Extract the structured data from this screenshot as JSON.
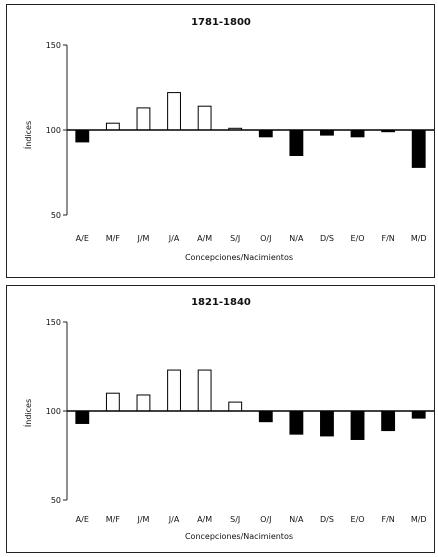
{
  "chart_data": [
    {
      "type": "bar",
      "title": "1781-1800",
      "xlabel": "Concepciones/Nacimientos",
      "ylabel": "Índices",
      "categories": [
        "A/E",
        "M/F",
        "J/M",
        "J/A",
        "A/M",
        "S/J",
        "O/J",
        "N/A",
        "D/S",
        "E/O",
        "F/N",
        "M/D"
      ],
      "values": [
        93,
        104,
        113,
        122,
        114,
        101,
        96,
        85,
        97,
        96,
        99,
        78
      ],
      "baseline": 100,
      "ylim": [
        50,
        150
      ],
      "yticks": [
        50,
        100,
        150
      ],
      "style": {
        "above_baseline": "white",
        "below_baseline": "black"
      }
    },
    {
      "type": "bar",
      "title": "1821-1840",
      "xlabel": "Concepciones/Nacimientos",
      "ylabel": "Índices",
      "categories": [
        "A/E",
        "M/F",
        "J/M",
        "J/A",
        "A/M",
        "S/J",
        "O/J",
        "N/A",
        "D/S",
        "E/O",
        "F/N",
        "M/D"
      ],
      "values": [
        93,
        110,
        109,
        123,
        123,
        105,
        94,
        87,
        86,
        84,
        89,
        96
      ],
      "baseline": 100,
      "ylim": [
        50,
        150
      ],
      "yticks": [
        50,
        100,
        150
      ],
      "style": {
        "above_baseline": "white",
        "below_baseline": "black"
      }
    }
  ]
}
